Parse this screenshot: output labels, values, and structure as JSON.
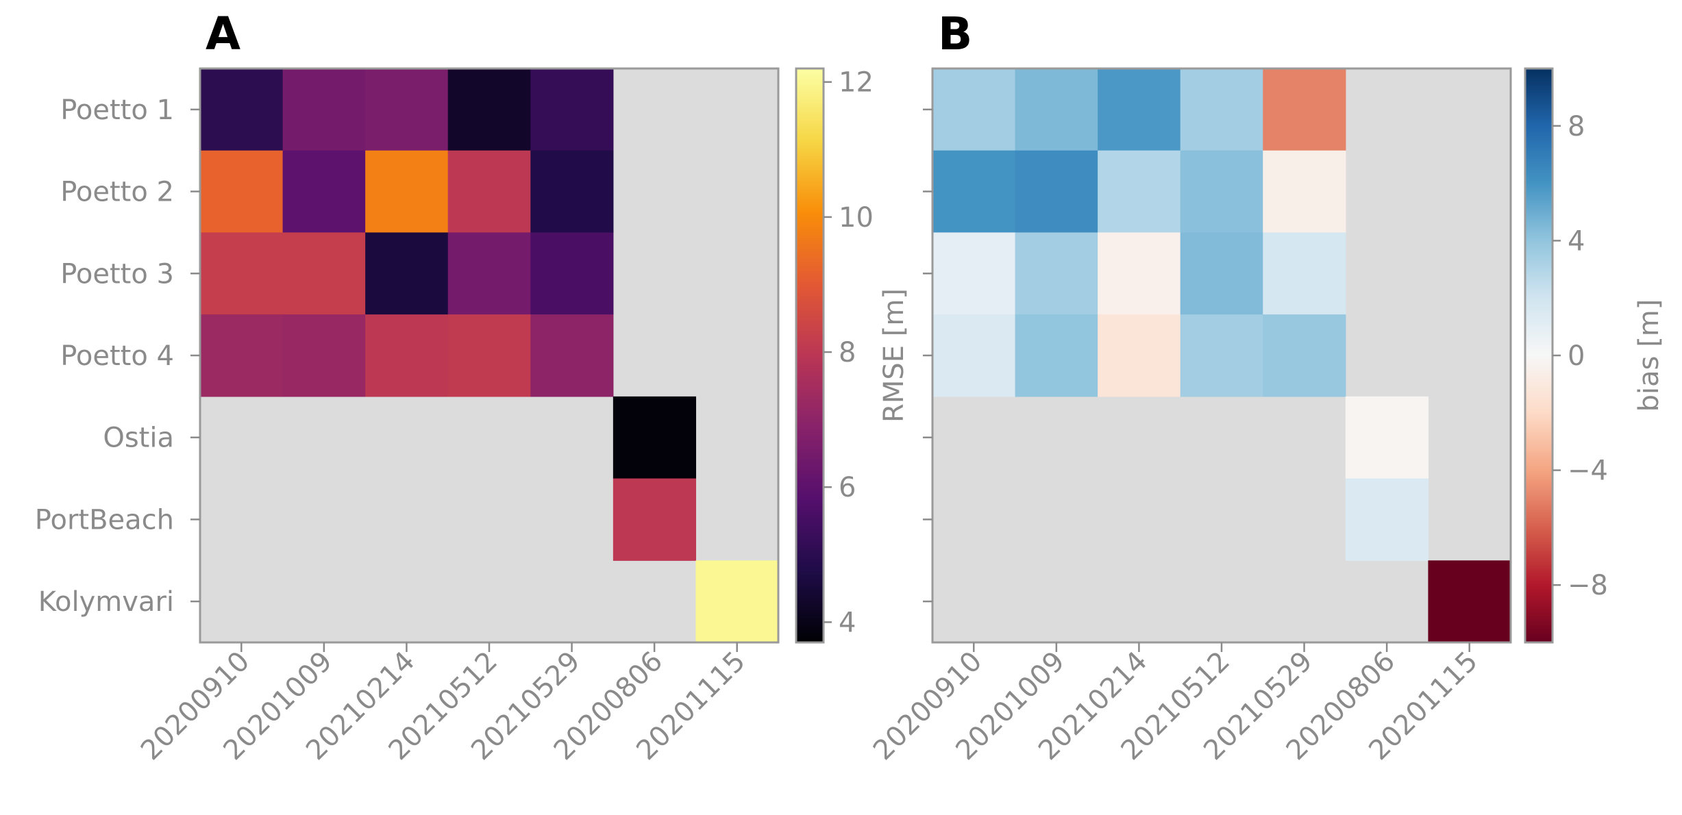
{
  "chart_data": [
    {
      "type": "heatmap",
      "panel_label": "A",
      "rows": [
        "Poetto 1",
        "Poetto 2",
        "Poetto 3",
        "Poetto 4",
        "Ostia",
        "PortBeach",
        "Kolymvari"
      ],
      "columns": [
        "20200910",
        "20201009",
        "20210214",
        "20210512",
        "20210529",
        "20200806",
        "20201115"
      ],
      "values": [
        [
          5.0,
          6.5,
          6.6,
          4.3,
          5.2,
          null,
          null
        ],
        [
          9.2,
          6.0,
          9.8,
          8.0,
          4.8,
          null,
          null
        ],
        [
          8.2,
          8.2,
          4.6,
          6.5,
          5.6,
          null,
          null
        ],
        [
          7.3,
          7.2,
          8.0,
          8.1,
          7.0,
          null,
          null
        ],
        [
          null,
          null,
          null,
          null,
          null,
          3.8,
          null
        ],
        [
          null,
          null,
          null,
          null,
          null,
          8.0,
          null
        ],
        [
          null,
          null,
          null,
          null,
          null,
          null,
          12.0
        ]
      ],
      "colormap": "inferno",
      "vmin": 3.7,
      "vmax": 12.2,
      "colorbar_label": "RMSE [m]",
      "colorbar_ticks": [
        "4",
        "6",
        "8",
        "10",
        "12"
      ],
      "colorbar_tick_values": [
        4,
        6,
        8,
        10,
        12
      ],
      "missing_color": "#dcdcdc"
    },
    {
      "type": "heatmap",
      "panel_label": "B",
      "rows": [
        "Poetto 1",
        "Poetto 2",
        "Poetto 3",
        "Poetto 4",
        "Ostia",
        "PortBeach",
        "Kolymvari"
      ],
      "columns": [
        "20200910",
        "20201009",
        "20210214",
        "20210512",
        "20210529",
        "20200806",
        "20201115"
      ],
      "values": [
        [
          3.5,
          4.5,
          5.8,
          3.5,
          -5.0,
          null,
          null
        ],
        [
          6.0,
          6.3,
          3.0,
          4.2,
          -0.6,
          null,
          null
        ],
        [
          1.0,
          3.5,
          -0.5,
          4.4,
          1.8,
          null,
          null
        ],
        [
          1.5,
          4.0,
          -1.3,
          3.5,
          3.8,
          null,
          null
        ],
        [
          null,
          null,
          null,
          null,
          null,
          -0.2,
          null
        ],
        [
          null,
          null,
          null,
          null,
          null,
          1.5,
          null
        ],
        [
          null,
          null,
          null,
          null,
          null,
          null,
          -10.0
        ]
      ],
      "colormap": "RdBu",
      "vmin": -10,
      "vmax": 10,
      "colorbar_label": "bias [m]",
      "colorbar_ticks": [
        "8",
        "4",
        "0",
        "−4",
        "−8"
      ],
      "colorbar_tick_values": [
        8,
        4,
        0,
        -4,
        -8
      ],
      "missing_color": "#dcdcdc"
    }
  ]
}
